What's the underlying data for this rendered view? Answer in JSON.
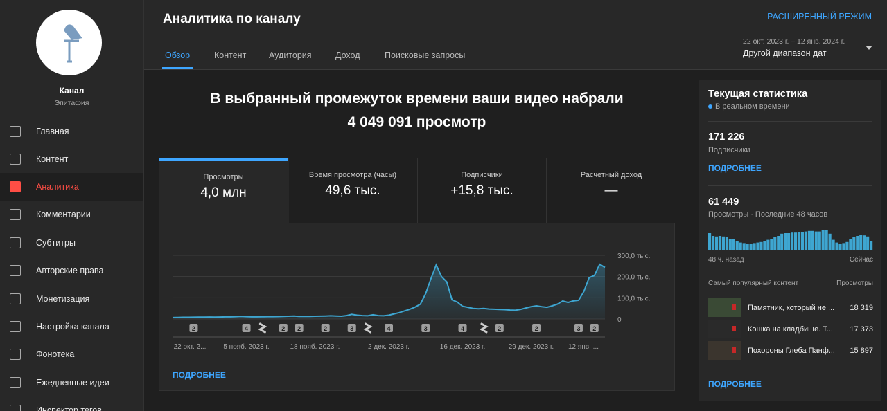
{
  "sidebar": {
    "channel_name": "Канал",
    "channel_subtitle": "Эпитафия",
    "nav": [
      "Главная",
      "Контент",
      "Аналитика",
      "Комментарии",
      "Субтитры",
      "Авторские права",
      "Монетизация",
      "Настройка канала",
      "Фонотека",
      "Ежедневные идеи",
      "Инспектор тегов"
    ],
    "active": 2
  },
  "header": {
    "title": "Аналитика по каналу",
    "advanced_mode": "РАСШИРЕННЫЙ РЕЖИМ",
    "tabs": [
      "Обзор",
      "Контент",
      "Аудитория",
      "Доход",
      "Поисковые запросы"
    ],
    "active_tab": 0,
    "date_range": "22 окт. 2023 г. – 12 янв. 2024 г.",
    "date_label": "Другой диапазон дат"
  },
  "summary": {
    "line1": "В выбранный промежуток времени ваши видео набрали",
    "line2": "4 049 091 просмотр"
  },
  "metrics": [
    {
      "label": "Просмотры",
      "value": "4,0 млн"
    },
    {
      "label": "Время просмотра (часы)",
      "value": "49,6 тыс."
    },
    {
      "label": "Подписчики",
      "value": "+15,8 тыс."
    },
    {
      "label": "Расчетный доход",
      "value": "—"
    }
  ],
  "chart_data": {
    "type": "line",
    "color": "#3ea6d1",
    "values": [
      7000,
      7500,
      8000,
      8000,
      8500,
      9000,
      9000,
      9500,
      9000,
      9500,
      10000,
      10000,
      11000,
      12000,
      11000,
      10000,
      10000,
      10500,
      11000,
      11000,
      11500,
      12000,
      13000,
      14000,
      12500,
      12000,
      12500,
      13000,
      13500,
      14000,
      15000,
      14000,
      13000,
      16000,
      22000,
      18000,
      16000,
      15000,
      20000,
      16000,
      15000,
      18000,
      24000,
      30000,
      38000,
      46000,
      56000,
      70000,
      120000,
      190000,
      255000,
      200000,
      175000,
      90000,
      80000,
      60000,
      55000,
      50000,
      48000,
      50000,
      47000,
      46000,
      45000,
      44000,
      42000,
      41000,
      45000,
      52000,
      58000,
      62000,
      58000,
      55000,
      62000,
      70000,
      85000,
      78000,
      85000,
      88000,
      130000,
      195000,
      205000,
      258000,
      243000
    ],
    "ylim": [
      0,
      300000
    ],
    "yticks": [
      0,
      {
        "value": 100000,
        "label": "100,0 тыс."
      },
      {
        "value": 200000,
        "label": "200,0 тыс."
      },
      {
        "value": 300000,
        "label": "300,0 тыс."
      }
    ],
    "xtick_labels": [
      {
        "index": 0,
        "label": "22 окт. 2..."
      },
      {
        "index": 14,
        "label": "5 нояб. 2023 г."
      },
      {
        "index": 27,
        "label": "18 нояб. 2023 г."
      },
      {
        "index": 41,
        "label": "2 дек. 2023 г."
      },
      {
        "index": 55,
        "label": "16 дек. 2023 г."
      },
      {
        "index": 68,
        "label": "29 дек. 2023 г."
      },
      {
        "index": 82,
        "label": "12 янв. ..."
      }
    ],
    "markers": [
      {
        "index": 4,
        "label": "2"
      },
      {
        "index": 14,
        "label": "4"
      },
      {
        "index": 17,
        "icon": "shorts"
      },
      {
        "index": 21,
        "label": "2"
      },
      {
        "index": 24,
        "label": "2"
      },
      {
        "index": 29,
        "label": "2"
      },
      {
        "index": 34,
        "label": "3"
      },
      {
        "index": 37,
        "icon": "shorts"
      },
      {
        "index": 41,
        "label": "4"
      },
      {
        "index": 48,
        "label": "3"
      },
      {
        "index": 55,
        "label": "4"
      },
      {
        "index": 59,
        "icon": "shorts"
      },
      {
        "index": 62,
        "label": "2"
      },
      {
        "index": 69,
        "label": "2"
      },
      {
        "index": 77,
        "label": "3"
      },
      {
        "index": 80,
        "label": "2"
      }
    ],
    "grid": true,
    "link": "ПОДРОБНЕЕ"
  },
  "realtime": {
    "title": "Текущая статистика",
    "live": "В реальном времени",
    "subscribers_value": "171 226",
    "subscribers_label": "Подписчики",
    "link1": "ПОДРОБНЕЕ",
    "views_value": "61 449",
    "views_label": "Просмотры · Последние 48 часов",
    "bars": [
      1500,
      1250,
      1200,
      1250,
      1200,
      1150,
      1000,
      1000,
      800,
      650,
      600,
      550,
      550,
      600,
      650,
      700,
      800,
      900,
      1000,
      1150,
      1250,
      1450,
      1500,
      1500,
      1550,
      1550,
      1600,
      1600,
      1650,
      1700,
      1700,
      1650,
      1650,
      1750,
      1750,
      1450,
      900,
      650,
      550,
      600,
      700,
      1000,
      1150,
      1250,
      1350,
      1300,
      1200,
      800
    ],
    "bars_color": "#3ea6d1",
    "start_label": "48 ч. назад",
    "end_label": "Сейчас",
    "top_title": "Самый популярный контент",
    "top_views": "Просмотры",
    "top": [
      {
        "title": "Памятник, который не ...",
        "views": "18 319"
      },
      {
        "title": "Кошка на кладбище. Т...",
        "views": "17 373"
      },
      {
        "title": "Похороны Глеба Панф...",
        "views": "15 897"
      }
    ],
    "link2": "ПОДРОБНЕЕ"
  }
}
